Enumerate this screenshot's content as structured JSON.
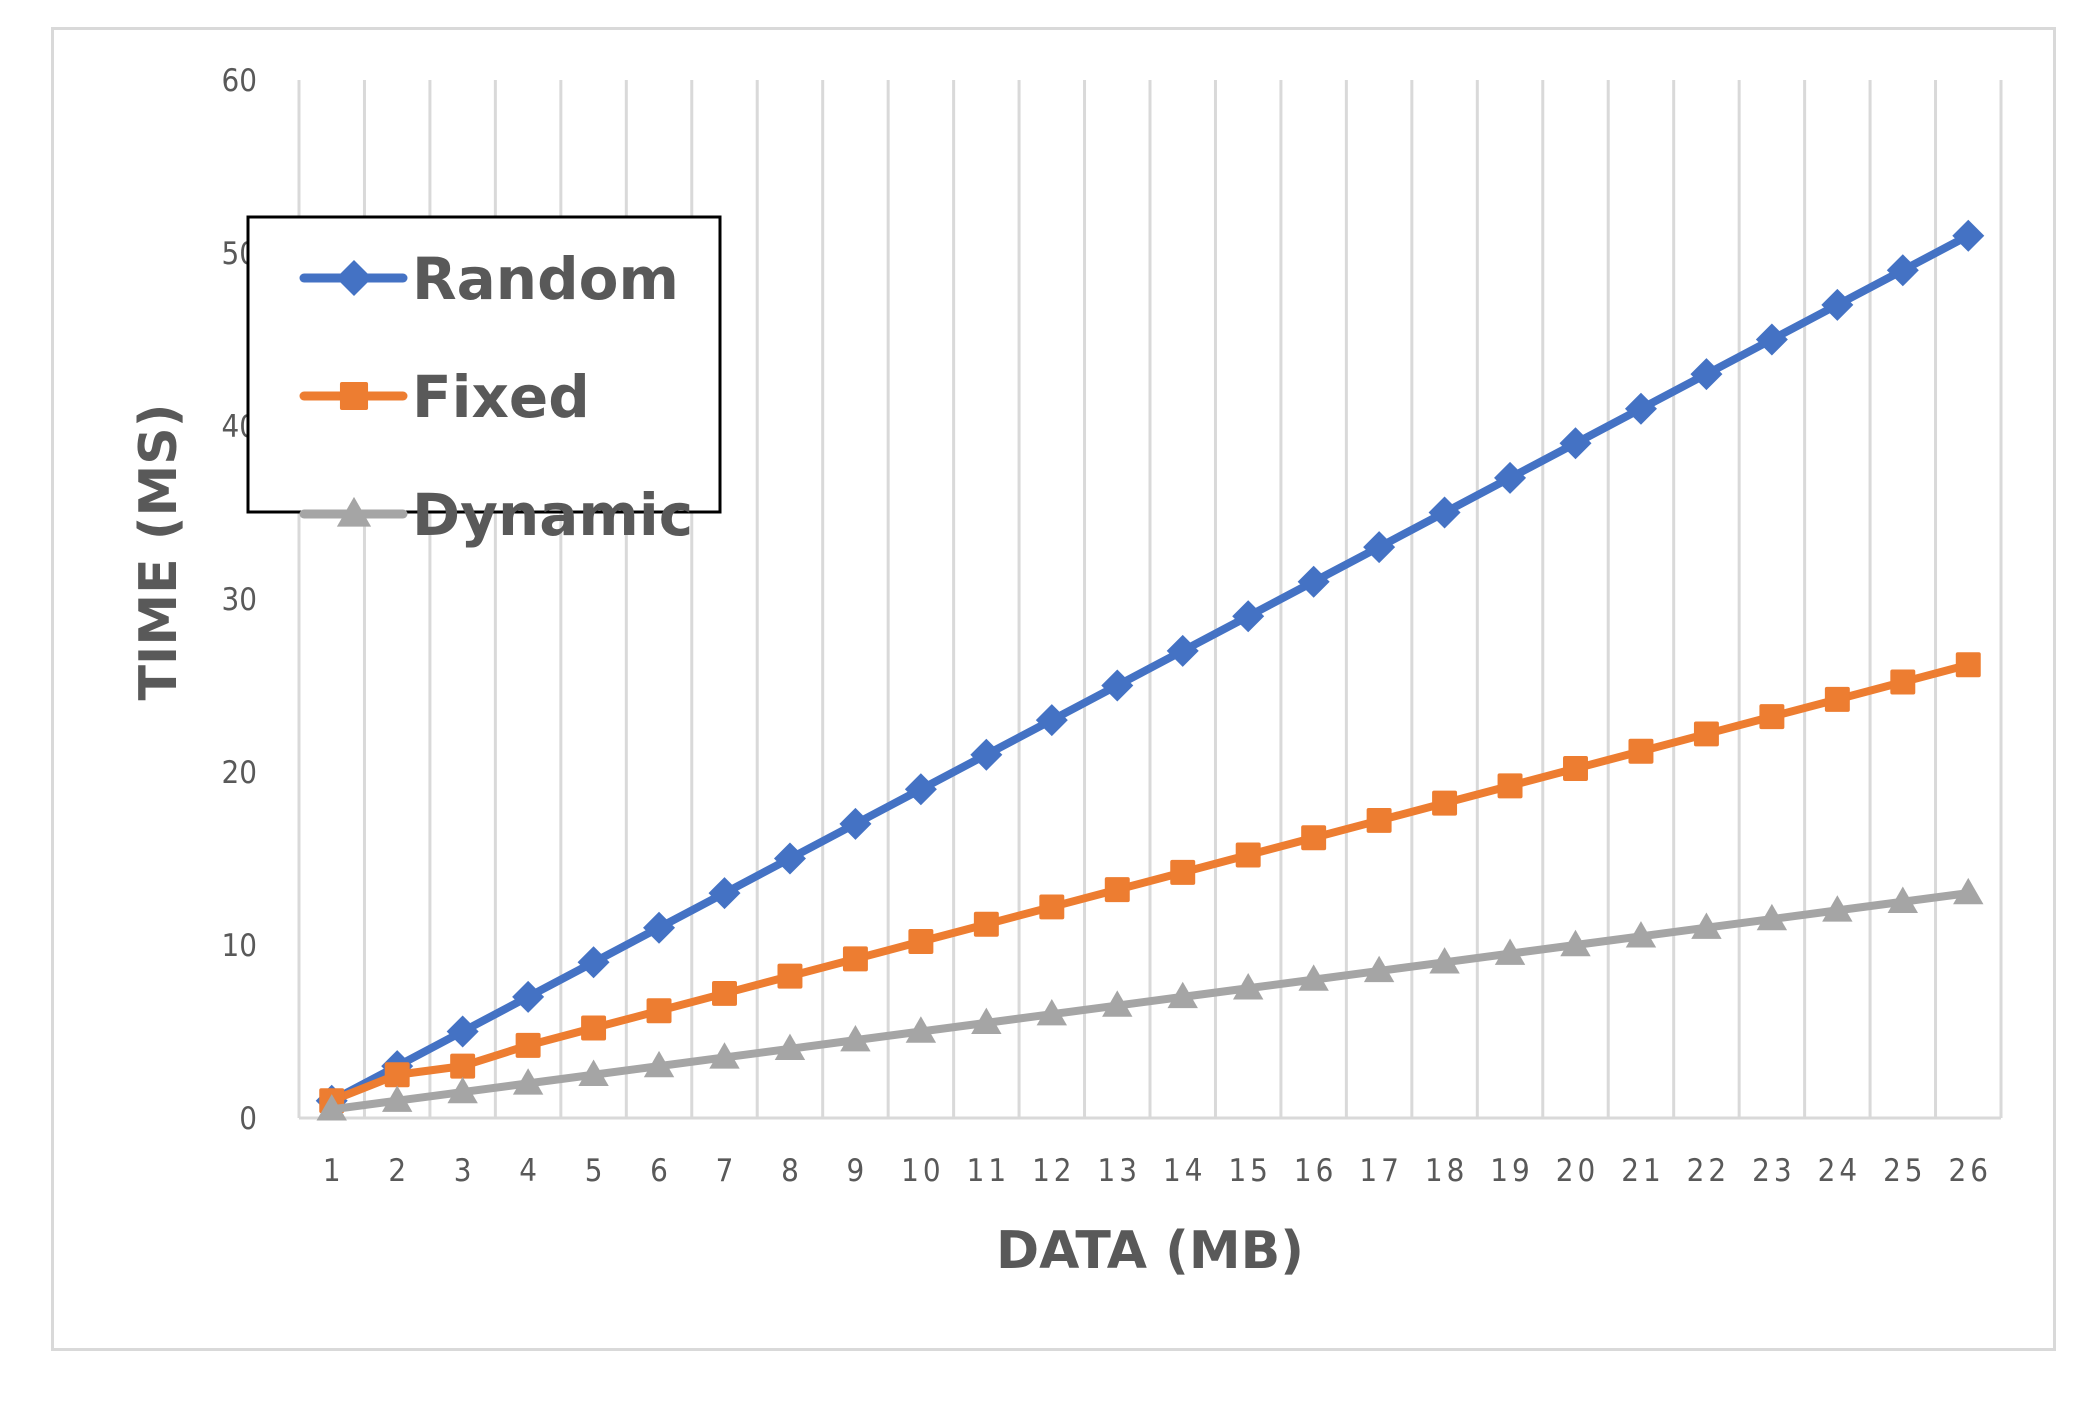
{
  "chart_data": {
    "type": "line",
    "title": "",
    "xlabel": "DATA (MB)",
    "ylabel": "TIME (MS)",
    "x": [
      1,
      2,
      3,
      4,
      5,
      6,
      7,
      8,
      9,
      10,
      11,
      12,
      13,
      14,
      15,
      16,
      17,
      18,
      19,
      20,
      21,
      22,
      23,
      24,
      25,
      26
    ],
    "ylim": [
      0,
      60
    ],
    "yticks": [
      0,
      10,
      20,
      30,
      40,
      50,
      60
    ],
    "grid": {
      "vertical": true,
      "horizontal": false
    },
    "legend_position": "upper-left (inside plot, boxed)",
    "series": [
      {
        "name": "Random",
        "color": "#4472c4",
        "marker": "diamond",
        "values": [
          1,
          3,
          5,
          7,
          9,
          11,
          13,
          15,
          17,
          19,
          21,
          23,
          25,
          27,
          29,
          31,
          33,
          35,
          37,
          39,
          41,
          43,
          45,
          47,
          49,
          51
        ]
      },
      {
        "name": "Fixed",
        "color": "#ed7d31",
        "marker": "square",
        "values": [
          1,
          2.5,
          3,
          4.2,
          5.2,
          6.2,
          7.2,
          8.2,
          9.2,
          10.2,
          11.2,
          12.2,
          13.2,
          14.2,
          15.2,
          16.2,
          17.2,
          18.2,
          19.2,
          20.2,
          21.2,
          22.2,
          23.2,
          24.2,
          25.2,
          26.2
        ]
      },
      {
        "name": "Dynamic",
        "color": "#a5a5a5",
        "marker": "triangle",
        "values": [
          0.5,
          1,
          1.5,
          2,
          2.5,
          3,
          3.5,
          4,
          4.5,
          5,
          5.5,
          6,
          6.5,
          7,
          7.5,
          8,
          8.5,
          9,
          9.5,
          10,
          10.5,
          11,
          11.5,
          12,
          12.5,
          13
        ]
      }
    ]
  },
  "colors": {
    "gridline": "#d9d9d9",
    "text": "#595959",
    "frame": "#d9d9d9",
    "legend_border": "#000000"
  }
}
